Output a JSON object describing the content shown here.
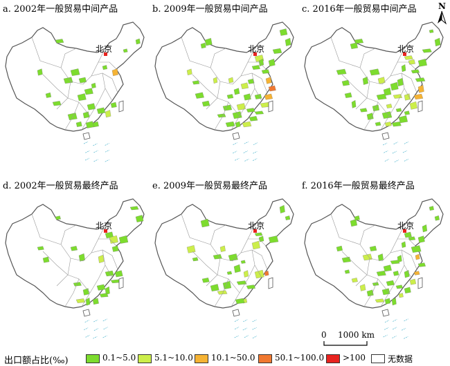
{
  "colors": {
    "c1": "#7ddc2e",
    "c2": "#ccee4a",
    "c3": "#f5b334",
    "c4": "#f07830",
    "c5": "#e8231f",
    "c6": "#ffffff",
    "boundary": "#555555"
  },
  "panels": [
    {
      "title": "a. 2002年一般贸易中间产品",
      "city": "北京",
      "intensity": 0.35
    },
    {
      "title": "b. 2009年一般贸易中间产品",
      "city": "北京",
      "intensity": 0.6
    },
    {
      "title": "c. 2016年一般贸易中间产品",
      "city": "北京",
      "intensity": 0.8
    },
    {
      "title": "d. 2002年一般贸易最终产品",
      "city": "北京",
      "intensity": 0.3
    },
    {
      "title": "e. 2009年一般贸易最终产品",
      "city": "北京",
      "intensity": 0.5
    },
    {
      "title": "f. 2016年一般贸易最终产品",
      "city": "北京",
      "intensity": 0.75
    }
  ],
  "north_arrow": "N",
  "scale": {
    "zero": "0",
    "value": "1000 km"
  },
  "legend": {
    "title": "出口额占比(‰)",
    "items": [
      {
        "label": "0.1~5.0",
        "color": "#7ddc2e"
      },
      {
        "label": "5.1~10.0",
        "color": "#ccee4a"
      },
      {
        "label": "10.1~50.0",
        "color": "#f5b334"
      },
      {
        "label": "50.1~100.0",
        "color": "#f07830"
      },
      {
        "label": ">100",
        "color": "#e8231f"
      },
      {
        "label": "无数据",
        "color": "#ffffff"
      }
    ]
  }
}
